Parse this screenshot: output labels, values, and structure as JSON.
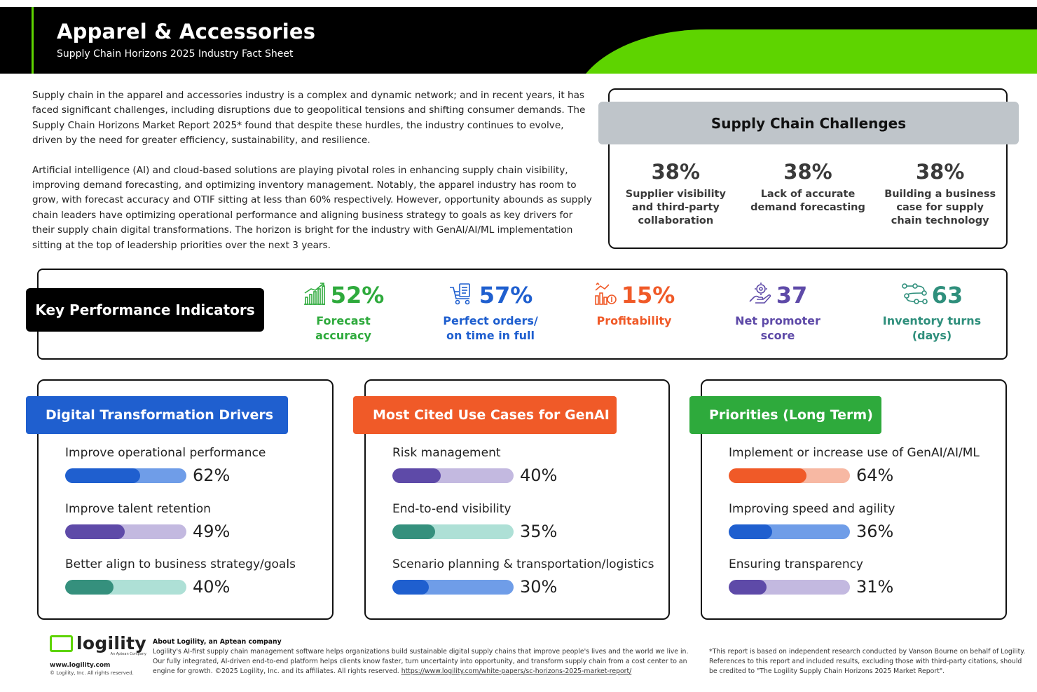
{
  "header": {
    "title": "Apparel & Accessories",
    "subtitle": "Supply Chain Horizons 2025 Industry Fact Sheet"
  },
  "intro": {
    "p1": "Supply chain in the apparel and accessories industry is a complex and dynamic network; and in recent years, it has faced significant challenges, including disruptions due to geopolitical tensions and shifting consumer demands. The Supply Chain Horizons Market Report 2025* found that despite these hurdles, the industry continues to evolve, driven by the need for greater efficiency, sustainability, and resilience.",
    "p2": "Artificial intelligence (AI) and cloud-based solutions are playing pivotal roles in enhancing supply chain visibility, improving demand forecasting, and optimizing inventory management. Notably, the apparel industry has room to grow, with forecast accuracy and OTIF sitting at less than 60% respectively. However, opportunity abounds as supply chain leaders have optimizing operational performance and aligning business strategy to goals as key drivers for their supply chain digital transformations. The horizon is bright for the industry with GenAI/AI/ML implementation sitting at the top of leadership priorities over the next 3 years."
  },
  "challenges": {
    "title": "Supply Chain Challenges",
    "items": [
      {
        "value": "38%",
        "label": "Supplier visibility and third-party collaboration"
      },
      {
        "value": "38%",
        "label": "Lack of accurate demand forecasting"
      },
      {
        "value": "38%",
        "label": "Building a business case for supply chain technology"
      }
    ]
  },
  "kpi": {
    "title": "Key Performance Indicators",
    "items": [
      {
        "value": "52%",
        "label": "Forecast accuracy",
        "color": "#2eaa3c",
        "icon": "chart-growth-icon"
      },
      {
        "value": "57%",
        "label": "Perfect orders/ on time in full",
        "color": "#1f5fcf",
        "icon": "order-cart-icon"
      },
      {
        "value": "15%",
        "label": "Profitability",
        "color": "#f05a28",
        "icon": "profit-chart-icon"
      },
      {
        "value": "37",
        "label": "Net promoter score",
        "color": "#5e4aa8",
        "icon": "hand-gear-icon"
      },
      {
        "value": "63",
        "label": "Inventory turns (days)",
        "color": "#2f8f7c",
        "icon": "route-network-icon"
      }
    ]
  },
  "panels": {
    "drivers": {
      "title": "Digital Transformation Drivers",
      "color": "#1f5fcf",
      "items": [
        {
          "label": "Improve operational performance",
          "value": "62%",
          "fraction": 0.62,
          "fill": "#1f5fcf",
          "track": "#6f9de8"
        },
        {
          "label": "Improve talent retention",
          "value": "49%",
          "fraction": 0.49,
          "fill": "#5e4aa8",
          "track": "#c3b9e0"
        },
        {
          "label": "Better align to business strategy/goals",
          "value": "40%",
          "fraction": 0.4,
          "fill": "#35907d",
          "track": "#aee0d6"
        }
      ]
    },
    "genai": {
      "title": "Most Cited Use Cases for GenAI",
      "color": "#f05a28",
      "items": [
        {
          "label": "Risk management",
          "value": "40%",
          "fraction": 0.4,
          "fill": "#5e4aa8",
          "track": "#c3b9e0"
        },
        {
          "label": "End-to-end visibility",
          "value": "35%",
          "fraction": 0.35,
          "fill": "#35907d",
          "track": "#aee0d6"
        },
        {
          "label": "Scenario planning & transportation/logistics",
          "value": "30%",
          "fraction": 0.3,
          "fill": "#1f5fcf",
          "track": "#6f9de8"
        }
      ]
    },
    "priorities": {
      "title": "Priorities (Long Term)",
      "color": "#2eaa3c",
      "items": [
        {
          "label": "Implement or increase use of GenAI/AI/ML",
          "value": "64%",
          "fraction": 0.64,
          "fill": "#f05a28",
          "track": "#f7b8a3"
        },
        {
          "label": "Improving speed and agility",
          "value": "36%",
          "fraction": 0.36,
          "fill": "#1f5fcf",
          "track": "#6f9de8"
        },
        {
          "label": "Ensuring transparency",
          "value": "31%",
          "fraction": 0.31,
          "fill": "#5e4aa8",
          "track": "#c3b9e0"
        }
      ]
    }
  },
  "footer": {
    "logo": "logility",
    "logo_tag": "An Aptean Company",
    "url": "www.logility.com",
    "copyright": "© Logility, Inc. All rights reserved.",
    "about_title": "About Logility, an Aptean company",
    "about_text": "Logility's AI-first supply chain management software helps organizations build sustainable digital supply chains that improve people's lives and the world we live in. Our fully integrated, AI-driven end-to-end platform helps clients know faster, turn uncertainty into opportunity, and transform supply chain from a cost center to an engine for growth. ©2025 Logility, Inc. and its affiliates. All rights reserved.",
    "about_link": "https://www.logility.com/white-papers/sc-horizons-2025-market-report/",
    "footnote": "*This report is based on independent research conducted by Vanson Bourne on behalf of Logility. References to this report and included results, excluding those with third-party citations, should be credited to \"The Logility Supply Chain Horizons 2025 Market Report\"."
  }
}
